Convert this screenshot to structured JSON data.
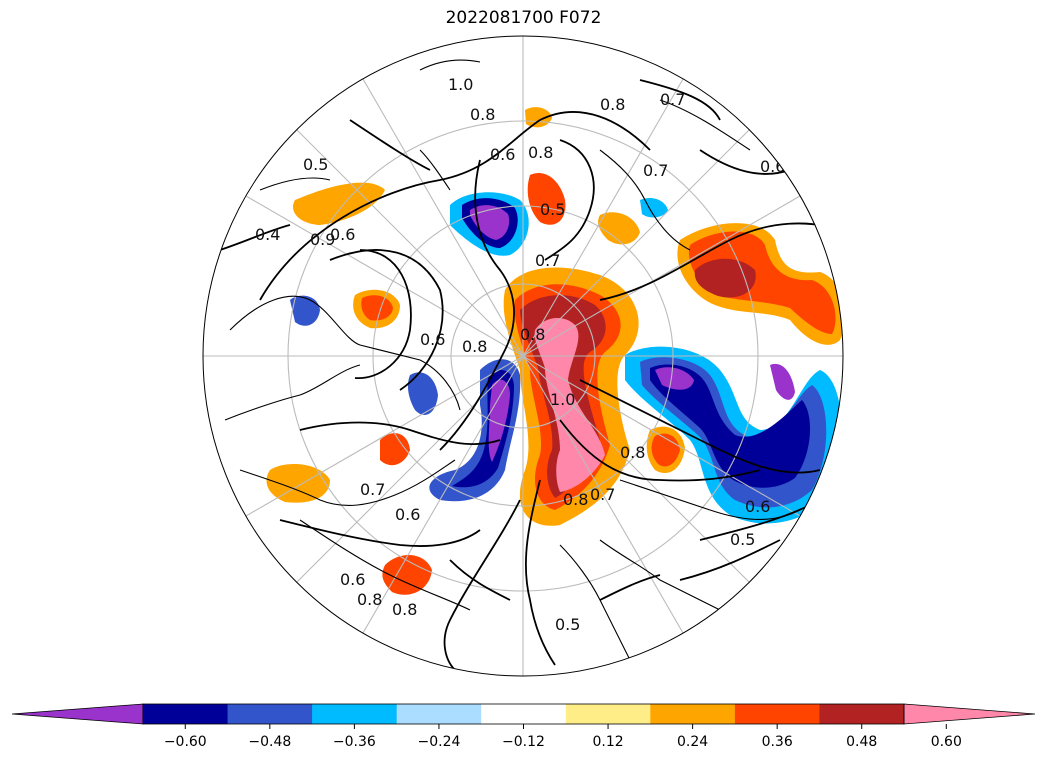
{
  "title": "2022081700 F072",
  "colorbar": {
    "colors": [
      "#9933cc",
      "#000099",
      "#3355cc",
      "#00bbff",
      "#aaddff",
      "#ffffff",
      "#ffee88",
      "#ffa500",
      "#ff4400",
      "#b22222",
      "#ff88aa"
    ],
    "tick_labels": [
      "−0.60",
      "−0.48",
      "−0.36",
      "−0.24",
      "−0.12",
      "0.12",
      "0.24",
      "0.36",
      "0.48",
      "0.60"
    ],
    "extend": "both"
  },
  "contour_labels": [
    "1.0",
    "0.8",
    "0.6",
    "0.8",
    "0.5",
    "0.4",
    "0.5",
    "0.8",
    "0.7",
    "0.6",
    "0.7",
    "0.8",
    "1.0",
    "0.8",
    "0.7",
    "0.8",
    "0.6",
    "0.5",
    "0.6",
    "0.7",
    "0.8",
    "0.6",
    "0.7",
    "0.6",
    "0.8",
    "0.8",
    "0.9",
    "0.6",
    "0.5"
  ]
}
